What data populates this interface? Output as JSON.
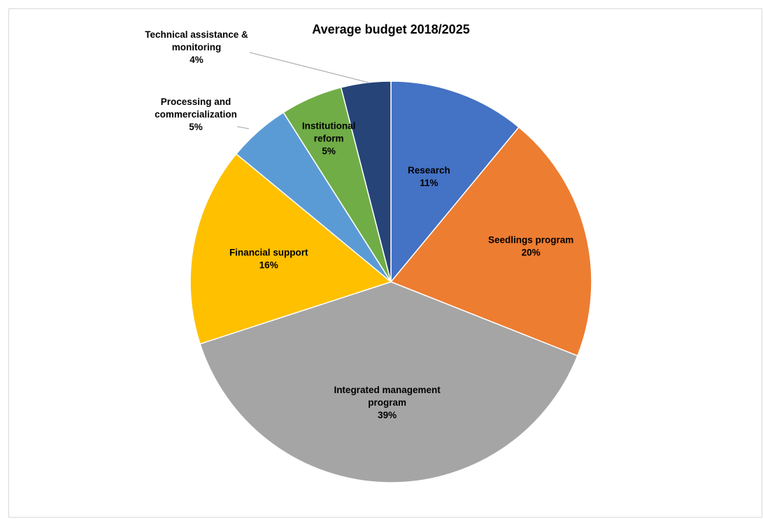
{
  "chart_data": {
    "type": "pie",
    "title": "Average budget  2018/2025",
    "slices": [
      {
        "label": [
          "Research"
        ],
        "value": 11,
        "value_label": "11%",
        "color": "#4472C4"
      },
      {
        "label": [
          "Seedlings program"
        ],
        "value": 20,
        "value_label": "20%",
        "color": "#ED7D31"
      },
      {
        "label": [
          "Integrated management",
          "program"
        ],
        "value": 39,
        "value_label": "39%",
        "color": "#A5A5A5"
      },
      {
        "label": [
          "Financial support"
        ],
        "value": 16,
        "value_label": "16%",
        "color": "#FFC000"
      },
      {
        "label": [
          "Processing and",
          "commercialization"
        ],
        "value": 5,
        "value_label": "5%",
        "color": "#5B9BD5"
      },
      {
        "label": [
          "Institutional",
          "reform"
        ],
        "value": 5,
        "value_label": "5%",
        "color": "#70AD47"
      },
      {
        "label": [
          "Technical assistance &",
          "monitoring"
        ],
        "value": 4,
        "value_label": "4%",
        "color": "#264478"
      }
    ],
    "start_angle": "12 o'clock",
    "direction": "clockwise",
    "legend": "none"
  }
}
